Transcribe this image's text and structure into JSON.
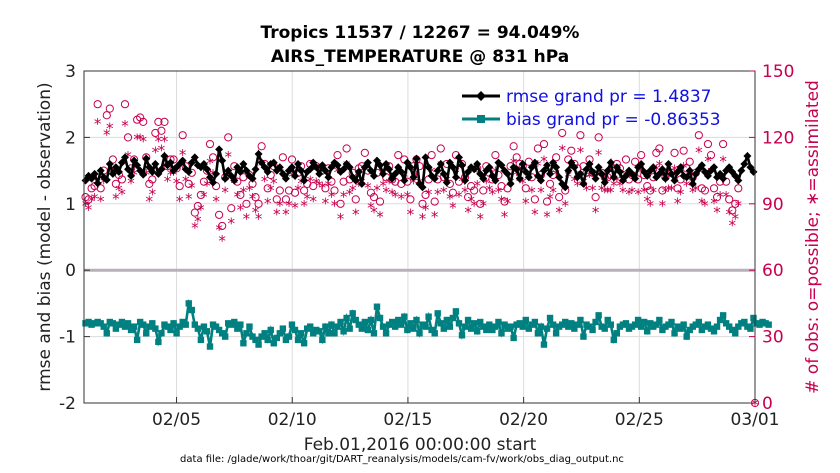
{
  "chart_data": {
    "type": "line",
    "title": "Tropics 11537 / 12267 = 94.049%",
    "subtitle": "AIRS_TEMPERATURE @ 831 hPa",
    "ylabel": "rmse and bias (model - observation)",
    "ylabel_right": "# of obs: o=possible; ∗=assimilated",
    "xlabel": "Feb.01,2016 00:00:00 start",
    "datafile": "data file: /glade/work/thoar/git/DART_reanalysis/models/cam-fv/work/obs_diag_output.nc",
    "x_ticks": [
      {
        "label": "02/05",
        "day": 5
      },
      {
        "label": "02/10",
        "day": 10
      },
      {
        "label": "02/15",
        "day": 15
      },
      {
        "label": "02/20",
        "day": 20
      },
      {
        "label": "02/25",
        "day": 25
      },
      {
        "label": "03/01",
        "day": 30
      }
    ],
    "xlim": [
      1,
      30
    ],
    "ylim": [
      -2,
      3
    ],
    "y_ticks": [
      "-2",
      "-1",
      "0",
      "1",
      "2",
      "3"
    ],
    "ylim_right": [
      0,
      150
    ],
    "y_ticks_right": [
      "0",
      "30",
      "60",
      "90",
      "120",
      "150"
    ],
    "series": [
      {
        "name": "rmse",
        "legend": "rmse grand pr = 1.4837",
        "color": "#000000",
        "values": [
          1.35,
          1.42,
          1.38,
          1.45,
          1.31,
          1.5,
          1.4,
          1.36,
          1.6,
          1.45,
          1.55,
          1.48,
          1.62,
          1.7,
          1.52,
          1.42,
          1.65,
          1.58,
          1.5,
          1.44,
          1.68,
          1.55,
          1.48,
          1.6,
          1.45,
          1.52,
          1.72,
          1.58,
          1.62,
          1.5,
          1.55,
          1.6,
          1.65,
          1.52,
          1.48,
          1.62,
          1.7,
          1.58,
          1.55,
          1.6,
          1.52,
          1.4,
          1.32,
          1.45,
          1.82,
          1.65,
          1.38,
          1.5,
          1.42,
          1.35,
          1.55,
          1.48,
          1.6,
          1.5,
          1.42,
          1.38,
          1.52,
          1.75,
          1.62,
          1.55,
          1.48,
          1.6,
          1.62,
          1.5,
          1.55,
          1.45,
          1.38,
          1.5,
          1.55,
          1.42,
          1.6,
          1.5,
          1.35,
          1.48,
          1.52,
          1.62,
          1.55,
          1.45,
          1.58,
          1.5,
          1.4,
          1.55,
          1.62,
          1.58,
          1.48,
          1.52,
          1.6,
          1.55,
          1.4,
          1.35,
          1.48,
          1.3,
          1.55,
          1.62,
          1.5,
          1.42,
          1.65,
          1.58,
          1.45,
          1.6,
          1.52,
          1.38,
          1.45,
          1.55,
          1.48,
          1.35,
          1.62,
          1.55,
          1.4,
          1.68,
          1.3,
          1.25,
          1.7,
          1.55,
          1.42,
          1.38,
          1.5,
          1.6,
          1.45,
          1.32,
          1.62,
          1.55,
          1.4,
          1.7,
          1.58,
          1.35,
          1.48,
          1.55,
          1.52,
          1.6,
          1.45,
          1.38,
          1.5,
          1.55,
          1.42,
          1.35,
          1.62,
          1.58,
          1.5,
          1.45,
          1.3,
          1.55,
          1.52,
          1.38,
          1.6,
          1.48,
          1.4,
          1.55,
          1.62,
          1.42,
          1.35,
          1.5,
          1.58,
          1.45,
          1.62,
          1.55,
          1.4,
          1.3,
          1.25,
          1.5,
          1.62,
          1.55,
          1.4,
          1.45,
          1.3,
          1.52,
          1.6,
          1.48,
          1.38,
          1.55,
          1.45,
          1.32,
          1.5,
          1.62,
          1.4,
          1.55,
          1.48,
          1.35,
          1.42,
          1.5,
          1.45,
          1.38,
          1.55,
          1.6,
          1.48,
          1.42,
          1.5,
          1.55,
          1.4,
          1.45,
          1.52,
          1.38,
          1.6,
          1.45,
          1.35,
          1.48,
          1.55,
          1.42,
          1.4,
          1.5,
          1.3,
          1.45,
          1.52,
          1.58,
          1.48,
          1.42,
          1.5,
          1.55,
          1.4,
          1.45,
          1.38,
          1.5,
          1.55,
          1.48,
          1.42,
          1.35,
          1.5,
          1.6,
          1.72,
          1.55,
          1.48
        ]
      },
      {
        "name": "bias",
        "legend": "bias grand pr = -0.86353",
        "color": "#008080",
        "values": [
          -0.8,
          -0.78,
          -0.82,
          -0.8,
          -0.78,
          -0.8,
          -0.85,
          -0.95,
          -0.78,
          -0.8,
          -0.88,
          -0.82,
          -0.78,
          -0.85,
          -0.8,
          -0.9,
          -0.85,
          -1.05,
          -0.78,
          -0.82,
          -0.95,
          -0.85,
          -0.8,
          -0.88,
          -1.08,
          -0.95,
          -0.82,
          -0.85,
          -0.9,
          -0.8,
          -0.95,
          -0.85,
          -0.78,
          -0.82,
          -0.5,
          -0.6,
          -0.82,
          -0.88,
          -1.05,
          -0.85,
          -0.92,
          -1.15,
          -0.82,
          -0.85,
          -0.9,
          -0.95,
          -1.0,
          -0.8,
          -0.82,
          -0.78,
          -0.88,
          -0.82,
          -1.1,
          -0.95,
          -0.85,
          -1.0,
          -1.05,
          -1.12,
          -1.0,
          -0.95,
          -1.05,
          -0.9,
          -1.1,
          -1.02,
          -0.95,
          -0.88,
          -1.05,
          -1.0,
          -0.82,
          -0.9,
          -1.05,
          -0.95,
          -1.1,
          -0.88,
          -0.85,
          -0.95,
          -0.9,
          -0.92,
          -1.05,
          -0.85,
          -0.95,
          -0.82,
          -0.95,
          -0.85,
          -0.78,
          -0.92,
          -0.72,
          -0.88,
          -0.65,
          -0.75,
          -0.82,
          -0.88,
          -0.78,
          -0.9,
          -0.75,
          -0.95,
          -0.55,
          -0.72,
          -0.85,
          -0.95,
          -0.82,
          -0.78,
          -0.85,
          -0.75,
          -0.82,
          -0.7,
          -0.9,
          -0.8,
          -0.88,
          -0.75,
          -0.95,
          -0.82,
          -0.85,
          -0.7,
          -0.9,
          -0.95,
          -0.65,
          -0.8,
          -0.88,
          -0.75,
          -0.85,
          -0.72,
          -0.62,
          -0.8,
          -0.98,
          -0.85,
          -0.75,
          -0.88,
          -0.8,
          -0.92,
          -0.78,
          -0.85,
          -0.9,
          -0.82,
          -0.9,
          -0.85,
          -0.78,
          -0.95,
          -0.82,
          -0.88,
          -0.85,
          -1.02,
          -0.82,
          -0.8,
          -0.85,
          -0.75,
          -0.88,
          -0.82,
          -0.78,
          -0.95,
          -0.85,
          -1.12,
          -0.88,
          -0.72,
          -0.82,
          -0.95,
          -0.85,
          -0.82,
          -0.78,
          -0.85,
          -0.8,
          -0.88,
          -0.82,
          -0.75,
          -1.0,
          -0.82,
          -0.85,
          -0.9,
          -0.78,
          -0.68,
          -0.85,
          -0.88,
          -0.75,
          -0.82,
          -1.05,
          -0.95,
          -0.85,
          -0.82,
          -0.8,
          -0.88,
          -0.85,
          -0.82,
          -0.75,
          -0.85,
          -0.78,
          -0.92,
          -0.8,
          -0.85,
          -0.82,
          -0.75,
          -0.9,
          -0.85,
          -0.82,
          -0.78,
          -0.95,
          -0.85,
          -0.88,
          -0.82,
          -1.0,
          -0.9,
          -0.85,
          -0.82,
          -0.78,
          -0.9,
          -0.85,
          -0.82,
          -0.88,
          -0.92,
          -0.85,
          -0.75,
          -0.68,
          -0.8,
          -0.85,
          -0.9,
          -0.95,
          -0.85,
          -0.8,
          -0.78,
          -0.85,
          -0.88,
          -0.72,
          -0.8,
          -0.82,
          -0.78,
          -0.8,
          -0.82
        ]
      },
      {
        "name": "possible",
        "color": "#c8004f",
        "marker": "o",
        "values": [
          93,
          92,
          97,
          98,
          135,
          97,
          105,
          130,
          133,
          110,
          99,
          103,
          101,
          135,
          120,
          106,
          110,
          128,
          129,
          127,
          111,
          99,
          101,
          122,
          127,
          123,
          127,
          107,
          110,
          110,
          106,
          98,
          121,
          107,
          99,
          104,
          86,
          89,
          94,
          100,
          105,
          117,
          111,
          98,
          85,
          80,
          102,
          120,
          88,
          107,
          100,
          94,
          102,
          90,
          103,
          99,
          93,
          90,
          116,
          108,
          97,
          103,
          107,
          92,
          96,
          111,
          92,
          96,
          110,
          95,
          104,
          107,
          96,
          99,
          108,
          98,
          107,
          106,
          105,
          97,
          106,
          100,
          96,
          112,
          90,
          100,
          115,
          101,
          104,
          92,
          106,
          107,
          113,
          105,
          95,
          93,
          104,
          91,
          106,
          102,
          107,
          101,
          100,
          112,
          99,
          110,
          100,
          92,
          107,
          110,
          107,
          90,
          94,
          101,
          112,
          91,
          101,
          115,
          102,
          108,
          99,
          95,
          112,
          100,
          108,
          102,
          93,
          98,
          96,
          106,
          90,
          96,
          107,
          104,
          101,
          112,
          103,
          98,
          91,
          97,
          107,
          116,
          111,
          108,
          107,
          97,
          109,
          102,
          92,
          115,
          103,
          117,
          91,
          99,
          103,
          111,
          93,
          122,
          96,
          110,
          114,
          108,
          106,
          121,
          107,
          104,
          110,
          104,
          93,
          120,
          104,
          102,
          102,
          103,
          106,
          108,
          106,
          103,
          110,
          101,
          103,
          109,
          101,
          112,
          103,
          98,
          96,
          102,
          113,
          115,
          96,
          102,
          104,
          104,
          113,
          97,
          101,
          114,
          106,
          109,
          102,
          104,
          121,
          97,
          96,
          117,
          112,
          97,
          93,
          100,
          117,
          100,
          92,
          87,
          90,
          97
        ]
      },
      {
        "name": "assimilated",
        "color": "#c8004f",
        "marker": "*",
        "values": [
          90,
          88,
          92,
          93,
          127,
          92,
          100,
          122,
          125,
          105,
          93,
          97,
          95,
          126,
          112,
          100,
          104,
          120,
          120,
          119,
          104,
          92,
          95,
          114,
          119,
          115,
          119,
          101,
          104,
          104,
          100,
          92,
          113,
          101,
          93,
          98,
          80,
          83,
          88,
          94,
          99,
          109,
          104,
          92,
          79,
          74,
          96,
          112,
          82,
          100,
          94,
          88,
          96,
          84,
          97,
          93,
          87,
          84,
          108,
          101,
          91,
          97,
          100,
          86,
          90,
          104,
          86,
          90,
          103,
          89,
          97,
          100,
          90,
          93,
          101,
          92,
          100,
          99,
          98,
          91,
          99,
          94,
          90,
          105,
          84,
          94,
          108,
          95,
          97,
          86,
          99,
          100,
          106,
          98,
          89,
          87,
          97,
          85,
          99,
          96,
          100,
          95,
          94,
          105,
          93,
          103,
          94,
          86,
          100,
          103,
          100,
          84,
          88,
          95,
          105,
          85,
          95,
          108,
          96,
          101,
          93,
          89,
          105,
          94,
          101,
          96,
          87,
          92,
          90,
          99,
          84,
          90,
          100,
          97,
          95,
          105,
          96,
          92,
          85,
          91,
          100,
          109,
          104,
          101,
          100,
          91,
          102,
          96,
          86,
          108,
          96,
          110,
          85,
          93,
          96,
          104,
          87,
          115,
          90,
          103,
          107,
          101,
          99,
          114,
          100,
          97,
          103,
          97,
          87,
          113,
          97,
          96,
          96,
          96,
          99,
          101,
          99,
          96,
          103,
          95,
          96,
          102,
          95,
          105,
          96,
          92,
          90,
          96,
          106,
          108,
          90,
          96,
          97,
          97,
          106,
          91,
          95,
          107,
          99,
          102,
          96,
          97,
          114,
          91,
          90,
          110,
          105,
          91,
          87,
          94,
          110,
          94,
          86,
          81,
          84,
          90
        ]
      }
    ]
  }
}
